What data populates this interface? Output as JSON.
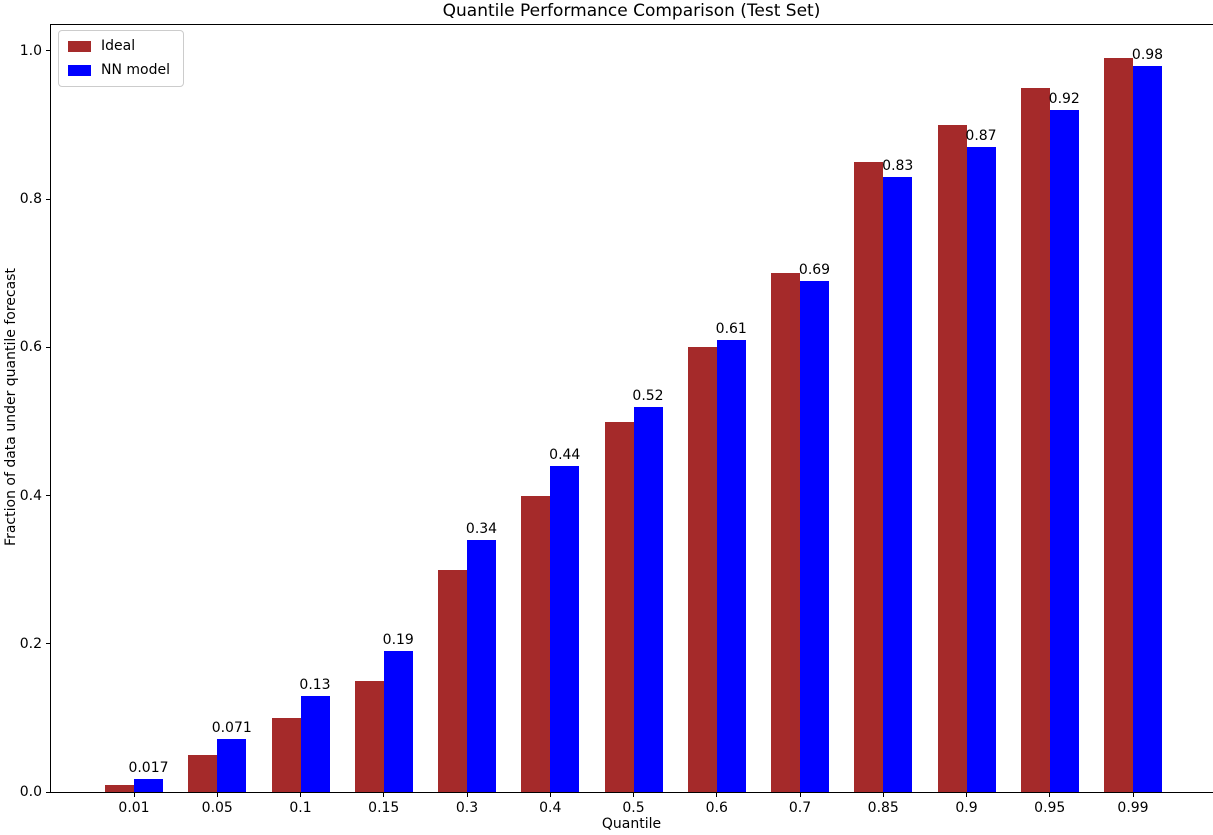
{
  "chart_data": {
    "type": "bar",
    "title": "Quantile Performance Comparison (Test Set)",
    "xlabel": "Quantile",
    "ylabel": "Fraction of data under quantile forecast",
    "categories": [
      "0.01",
      "0.05",
      "0.1",
      "0.15",
      "0.3",
      "0.4",
      "0.5",
      "0.6",
      "0.7",
      "0.85",
      "0.9",
      "0.95",
      "0.99"
    ],
    "series": [
      {
        "name": "Ideal",
        "color": "#A52A2A",
        "values": [
          0.01,
          0.05,
          0.1,
          0.15,
          0.3,
          0.4,
          0.5,
          0.6,
          0.7,
          0.85,
          0.9,
          0.95,
          0.99
        ]
      },
      {
        "name": "NN model",
        "color": "#0000FF",
        "values": [
          0.017,
          0.071,
          0.13,
          0.19,
          0.34,
          0.44,
          0.52,
          0.61,
          0.69,
          0.83,
          0.87,
          0.92,
          0.98
        ]
      }
    ],
    "bar_labels": [
      "0.017",
      "0.071",
      "0.13",
      "0.19",
      "0.34",
      "0.44",
      "0.52",
      "0.61",
      "0.69",
      "0.83",
      "0.87",
      "0.92",
      "0.98"
    ],
    "yticks": [
      "0.0",
      "0.2",
      "0.4",
      "0.6",
      "0.8",
      "1.0"
    ],
    "ylim": [
      0,
      1.035
    ],
    "legend_position": "upper left",
    "grid": false,
    "axis_color": "#000000",
    "background_color": "#ffffff"
  }
}
